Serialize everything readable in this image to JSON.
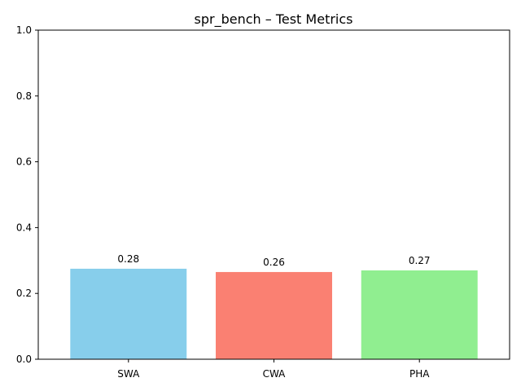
{
  "chart_data": {
    "type": "bar",
    "title": "spr_bench – Test Metrics",
    "xlabel": "",
    "ylabel": "",
    "categories": [
      "SWA",
      "CWA",
      "PHA"
    ],
    "values": [
      0.275,
      0.265,
      0.27
    ],
    "data_labels": [
      "0.28",
      "0.26",
      "0.27"
    ],
    "colors": [
      "#87CEEB",
      "#FA8072",
      "#90EE90"
    ],
    "ylim": [
      0,
      1
    ],
    "yticks": [
      0.0,
      0.2,
      0.4,
      0.6,
      0.8,
      1.0
    ],
    "ytick_labels": [
      "0.0",
      "0.2",
      "0.4",
      "0.6",
      "0.8",
      "1.0"
    ],
    "grid": false,
    "legend": "none"
  }
}
